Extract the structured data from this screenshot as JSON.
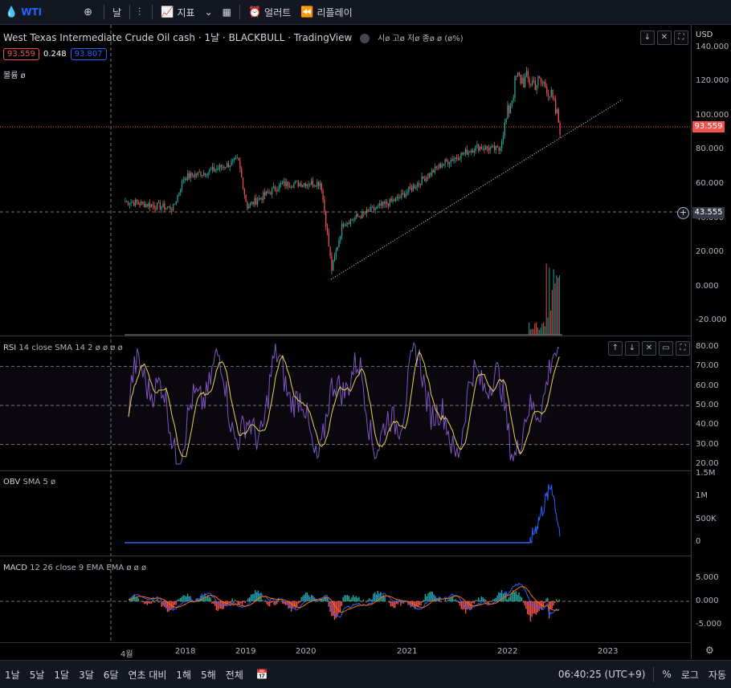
{
  "toolbar": {
    "symbol": "WTI",
    "interval": "날",
    "indicators": "지표",
    "alerts": "얼러트",
    "replay": "리플레이"
  },
  "legend": {
    "title": "West Texas Intermediate Crude Oil cash · 1날 · BLACKBULL · TradingView",
    "ohlc": "시ø 고ø 저ø 종ø ø (ø%)",
    "bid": "93.559",
    "spread": "0.248",
    "ask": "93.807",
    "volume": "볼륨  ø"
  },
  "price_axis": {
    "currency": "USD",
    "ticks": [
      "140.000",
      "120.000",
      "100.000",
      "80.000",
      "60.000",
      "40.000",
      "20.000",
      "0.000",
      "-20.000"
    ],
    "last_price": "93.559",
    "cursor_price": "43.555"
  },
  "rsi": {
    "label": "RSI",
    "params": "14 close SMA 14 2  ø ø ø ø",
    "ticks": [
      "80.00",
      "70.00",
      "60.00",
      "50.00",
      "40.00",
      "30.00",
      "20.00"
    ]
  },
  "obv": {
    "label": "OBV",
    "params": "SMA 5  ø",
    "ticks": [
      "1.5M",
      "1M",
      "500K",
      "0"
    ]
  },
  "macd": {
    "label": "MACD",
    "params": "12 26 close 9 EMA EMA  ø ø ø",
    "ticks": [
      "5.000",
      "0.000",
      "-5.000"
    ]
  },
  "time_axis": {
    "ticks": [
      "4월",
      "2018",
      "2019",
      "2020",
      "2021",
      "2022",
      "2023"
    ]
  },
  "bottom": {
    "ranges": [
      "1날",
      "5날",
      "1달",
      "3달",
      "6달",
      "연초 대비",
      "1해",
      "5해",
      "전체"
    ],
    "time": "06:40:25 (UTC+9)",
    "percent": "%",
    "log": "로그",
    "auto": "자동"
  },
  "colors": {
    "up": "#26a69a",
    "down": "#ef5350",
    "rsi": "#7e57c2",
    "rsi_ma": "#e8d44d",
    "obv": "#2962ff",
    "macd": "#2962ff",
    "signal": "#ff6d00"
  },
  "chart_data": [
    {
      "type": "line",
      "title": "West Texas Intermediate Crude Oil cash",
      "x": [
        "2017-04",
        "2017-10",
        "2018-01",
        "2018-06",
        "2018-10",
        "2019-01",
        "2019-06",
        "2020-01",
        "2020-04",
        "2020-06",
        "2021-01",
        "2021-06",
        "2021-10",
        "2022-01",
        "2022-03",
        "2022-06",
        "2022-07"
      ],
      "series": [
        {
          "values": [
            50,
            46,
            64,
            68,
            74,
            47,
            60,
            61,
            10,
            37,
            52,
            72,
            82,
            80,
            122,
            118,
            94
          ]
        }
      ],
      "ylim": [
        -25,
        140
      ]
    },
    {
      "type": "line",
      "title": "RSI",
      "ylim": [
        15,
        85
      ],
      "bands": [
        30,
        50,
        70
      ]
    },
    {
      "type": "line",
      "title": "OBV",
      "ylim": [
        0,
        1500000
      ]
    },
    {
      "type": "line",
      "title": "MACD",
      "ylim": [
        -7,
        7
      ]
    }
  ]
}
